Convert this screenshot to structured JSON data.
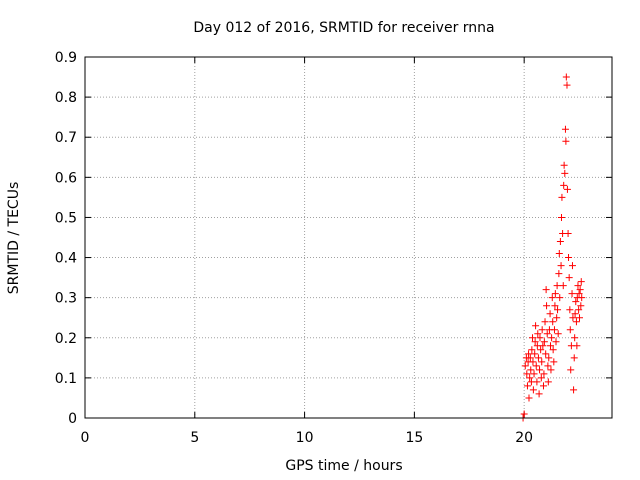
{
  "chart_data": {
    "type": "scatter",
    "title": "Day 012 of 2016, SRMTID for receiver rnna",
    "xlabel": "GPS time / hours",
    "ylabel": "SRMTID / TECUs",
    "xlim": [
      0,
      24
    ],
    "ylim": [
      0,
      0.9
    ],
    "xticks": [
      0,
      5,
      10,
      15,
      20
    ],
    "xtick_labels": [
      "0",
      "5",
      "10",
      "15",
      "20"
    ],
    "yticks": [
      0,
      0.1,
      0.2,
      0.3,
      0.4,
      0.5,
      0.6,
      0.7,
      0.8,
      0.9
    ],
    "ytick_labels": [
      "0",
      "0.1",
      "0.2",
      "0.3",
      "0.4",
      "0.5",
      "0.6",
      "0.7",
      "0.8",
      "0.9"
    ],
    "grid": true,
    "marker": "plus",
    "color": "#ff0000",
    "series": [
      {
        "name": "SRMTID",
        "points": [
          [
            19.95,
            0.0
          ],
          [
            20.0,
            0.01
          ],
          [
            20.05,
            0.13
          ],
          [
            20.1,
            0.15
          ],
          [
            20.12,
            0.11
          ],
          [
            20.15,
            0.08
          ],
          [
            20.18,
            0.14
          ],
          [
            20.2,
            0.16
          ],
          [
            20.22,
            0.05
          ],
          [
            20.25,
            0.1
          ],
          [
            20.28,
            0.15
          ],
          [
            20.3,
            0.12
          ],
          [
            20.33,
            0.09
          ],
          [
            20.35,
            0.17
          ],
          [
            20.38,
            0.2
          ],
          [
            20.4,
            0.14
          ],
          [
            20.42,
            0.07
          ],
          [
            20.45,
            0.11
          ],
          [
            20.48,
            0.16
          ],
          [
            20.5,
            0.19
          ],
          [
            20.52,
            0.23
          ],
          [
            20.55,
            0.13
          ],
          [
            20.58,
            0.09
          ],
          [
            20.6,
            0.18
          ],
          [
            20.62,
            0.21
          ],
          [
            20.65,
            0.15
          ],
          [
            20.68,
            0.06
          ],
          [
            20.7,
            0.12
          ],
          [
            20.72,
            0.2
          ],
          [
            20.75,
            0.17
          ],
          [
            20.78,
            0.1
          ],
          [
            20.8,
            0.14
          ],
          [
            20.82,
            0.22
          ],
          [
            20.85,
            0.18
          ],
          [
            20.88,
            0.08
          ],
          [
            20.9,
            0.11
          ],
          [
            20.92,
            0.19
          ],
          [
            20.95,
            0.24
          ],
          [
            20.98,
            0.16
          ],
          [
            21.0,
            0.32
          ],
          [
            21.02,
            0.28
          ],
          [
            21.05,
            0.21
          ],
          [
            21.08,
            0.13
          ],
          [
            21.1,
            0.09
          ],
          [
            21.12,
            0.15
          ],
          [
            21.15,
            0.22
          ],
          [
            21.18,
            0.26
          ],
          [
            21.2,
            0.18
          ],
          [
            21.22,
            0.12
          ],
          [
            21.25,
            0.2
          ],
          [
            21.28,
            0.3
          ],
          [
            21.3,
            0.24
          ],
          [
            21.32,
            0.17
          ],
          [
            21.35,
            0.14
          ],
          [
            21.38,
            0.22
          ],
          [
            21.4,
            0.28
          ],
          [
            21.42,
            0.31
          ],
          [
            21.45,
            0.19
          ],
          [
            21.48,
            0.25
          ],
          [
            21.5,
            0.33
          ],
          [
            21.52,
            0.27
          ],
          [
            21.55,
            0.21
          ],
          [
            21.58,
            0.36
          ],
          [
            21.6,
            0.41
          ],
          [
            21.62,
            0.3
          ],
          [
            21.65,
            0.44
          ],
          [
            21.68,
            0.38
          ],
          [
            21.7,
            0.5
          ],
          [
            21.72,
            0.55
          ],
          [
            21.75,
            0.46
          ],
          [
            21.78,
            0.33
          ],
          [
            21.8,
            0.58
          ],
          [
            21.82,
            0.63
          ],
          [
            21.85,
            0.61
          ],
          [
            21.88,
            0.72
          ],
          [
            21.9,
            0.69
          ],
          [
            21.92,
            0.85
          ],
          [
            21.95,
            0.83
          ],
          [
            21.97,
            0.57
          ],
          [
            22.0,
            0.46
          ],
          [
            22.02,
            0.4
          ],
          [
            22.05,
            0.35
          ],
          [
            22.08,
            0.27
          ],
          [
            22.1,
            0.22
          ],
          [
            22.12,
            0.12
          ],
          [
            22.15,
            0.18
          ],
          [
            22.18,
            0.31
          ],
          [
            22.2,
            0.38
          ],
          [
            22.22,
            0.25
          ],
          [
            22.25,
            0.07
          ],
          [
            22.28,
            0.15
          ],
          [
            22.3,
            0.2
          ],
          [
            22.32,
            0.26
          ],
          [
            22.35,
            0.29
          ],
          [
            22.38,
            0.24
          ],
          [
            22.4,
            0.18
          ],
          [
            22.42,
            0.3
          ],
          [
            22.45,
            0.33
          ],
          [
            22.48,
            0.27
          ],
          [
            22.5,
            0.31
          ],
          [
            22.52,
            0.25
          ],
          [
            22.55,
            0.32
          ],
          [
            22.58,
            0.28
          ],
          [
            22.6,
            0.34
          ],
          [
            22.62,
            0.3
          ]
        ]
      }
    ]
  }
}
